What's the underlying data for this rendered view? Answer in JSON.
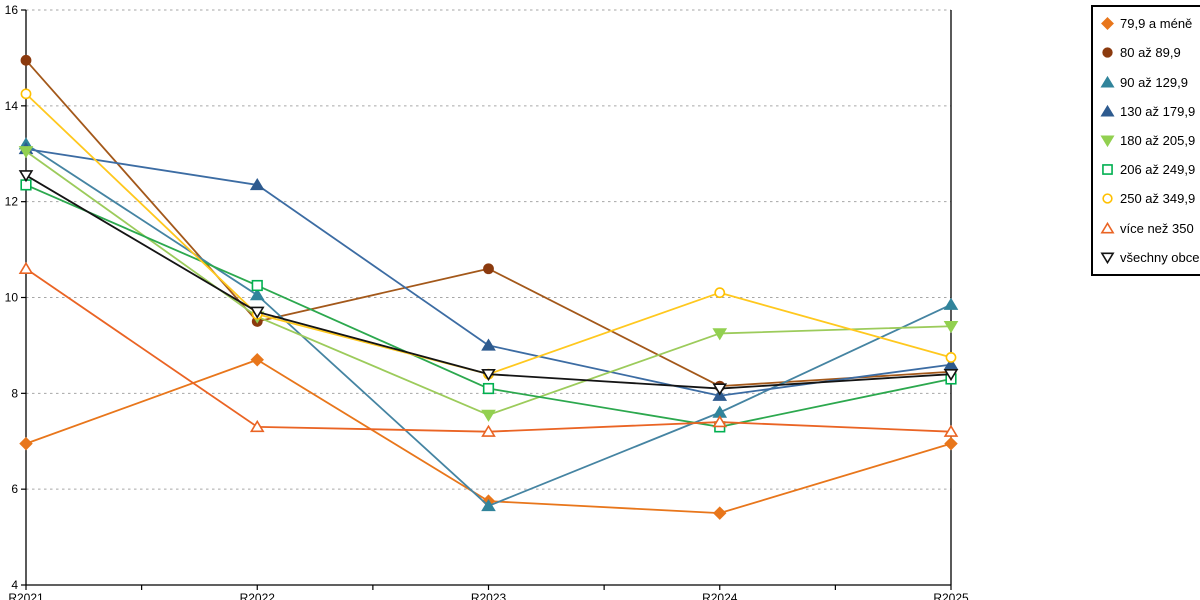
{
  "chart_data": {
    "type": "line",
    "x_categories": [
      "R2021",
      "R2022",
      "R2023",
      "R2024",
      "R2025"
    ],
    "yticks": [
      4,
      6,
      8,
      10,
      12,
      14,
      16
    ],
    "ylim": [
      4,
      16
    ],
    "grid": "horizontal-dotted",
    "legend_position": "right-outside",
    "minor_ticks_between_categories": true,
    "series": [
      {
        "name": "79,9 a méně",
        "marker": "diamond",
        "filled": true,
        "color": "#E8761B",
        "values": [
          6.95,
          8.7,
          5.75,
          5.5,
          6.95
        ]
      },
      {
        "name": "80 až 89,9",
        "marker": "circle",
        "filled": true,
        "color": "#A3581A",
        "marker_color": "#8B3A0E",
        "values": [
          14.95,
          9.5,
          10.6,
          8.15,
          8.45
        ]
      },
      {
        "name": "90 až 129,9",
        "marker": "triangle-up",
        "filled": true,
        "color": "#4584A2",
        "marker_color": "#31849B",
        "values": [
          13.2,
          10.05,
          5.65,
          7.6,
          9.85
        ]
      },
      {
        "name": "130 až 179,9",
        "marker": "triangle-up",
        "filled": true,
        "color": "#3C6CA3",
        "marker_color": "#2E5B8F",
        "values": [
          13.1,
          12.35,
          9.0,
          7.95,
          8.6
        ]
      },
      {
        "name": "180 až 205,9",
        "marker": "triangle-down",
        "filled": true,
        "color": "#9CCB5B",
        "marker_color": "#92D050",
        "values": [
          13.05,
          9.6,
          7.55,
          9.25,
          9.4
        ]
      },
      {
        "name": "206 až 249,9",
        "marker": "square",
        "filled": false,
        "color": "#2CA84E",
        "marker_color": "#00B050",
        "values": [
          12.35,
          10.25,
          8.1,
          7.3,
          8.3
        ]
      },
      {
        "name": "250 až 349,9",
        "marker": "circle",
        "filled": false,
        "color": "#FFC81E",
        "marker_color": "#FFC000",
        "values": [
          14.25,
          9.65,
          8.4,
          10.1,
          8.75
        ]
      },
      {
        "name": "více než 350",
        "marker": "triangle-up",
        "filled": false,
        "color": "#EA6424",
        "values": [
          10.6,
          7.3,
          7.2,
          7.4,
          7.2
        ]
      },
      {
        "name": "všechny obce",
        "marker": "triangle-down",
        "filled": false,
        "color": "#141414",
        "values": [
          12.55,
          9.7,
          8.4,
          8.1,
          8.4
        ]
      }
    ],
    "style": {
      "gridline_color": "#A6A6A6",
      "axis_color": "#000000",
      "background": "#FFFFFF"
    }
  }
}
